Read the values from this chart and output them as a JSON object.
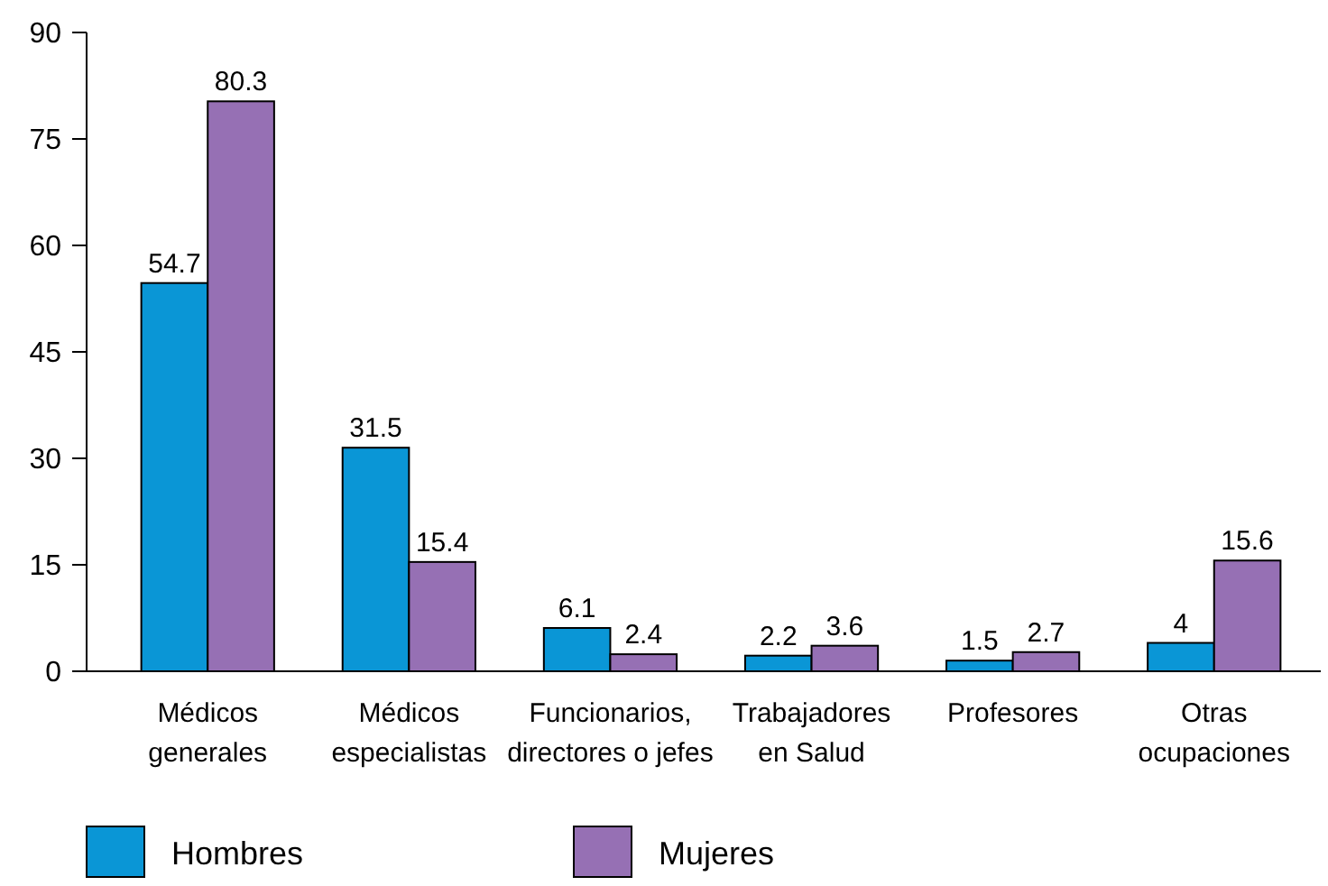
{
  "chart_data": {
    "type": "bar",
    "categories": [
      "Médicos\ngenerales",
      "Médicos\nespecialistas",
      "Funcionarios,\ndirectores o jefes",
      "Trabajadores\nen Salud",
      "Profesores",
      "Otras\nocupaciones"
    ],
    "series": [
      {
        "name": "Hombres",
        "color": "#0a96d6",
        "values": [
          54.7,
          31.5,
          6.1,
          2.2,
          1.5,
          4
        ]
      },
      {
        "name": "Mujeres",
        "color": "#9670b4",
        "values": [
          80.3,
          15.4,
          2.4,
          3.6,
          2.7,
          15.6
        ]
      }
    ],
    "ylim": [
      0,
      90
    ],
    "yticks": [
      0,
      15,
      30,
      45,
      60,
      75,
      90
    ],
    "data_labels": true,
    "legend": "bottom",
    "grid": false
  }
}
